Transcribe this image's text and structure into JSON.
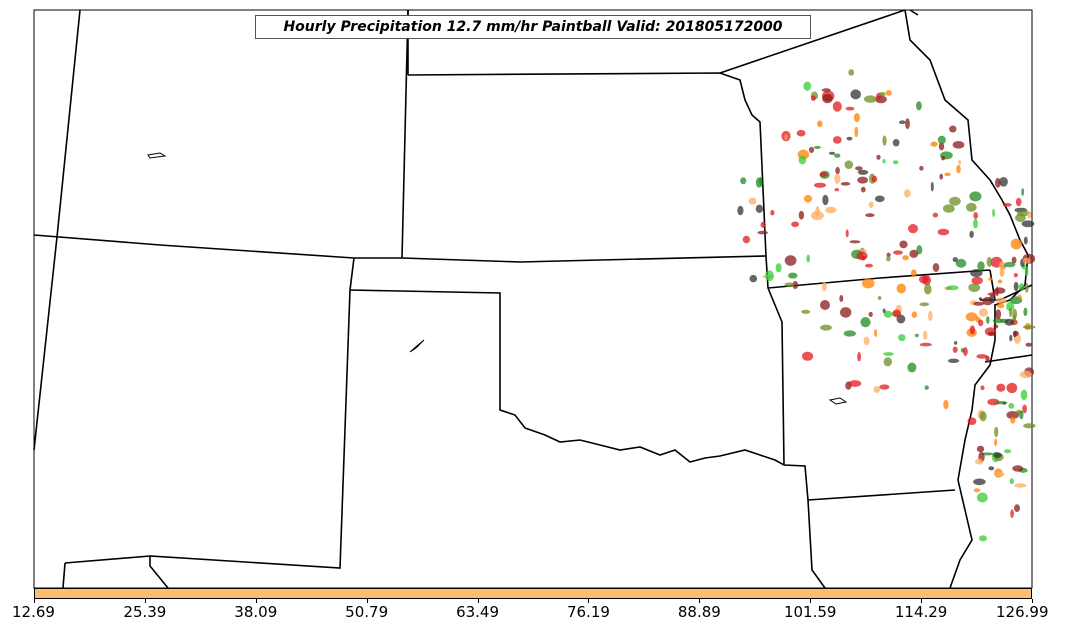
{
  "title": "Hourly Precipitation 12.7 mm/hr Paintball Valid: 201805172000",
  "colorbar": {
    "color": "#fdbf6f",
    "ticks": [
      "12.69",
      "25.39",
      "38.09",
      "50.79",
      "63.49",
      "76.19",
      "88.89",
      "101.59",
      "114.29",
      "126.99"
    ]
  },
  "paintball_colors": [
    "#e31a1c",
    "#ff7f00",
    "#33cc33",
    "#8b1a1a",
    "#fdae61",
    "#6b8e23",
    "#228b22",
    "#333333"
  ]
}
